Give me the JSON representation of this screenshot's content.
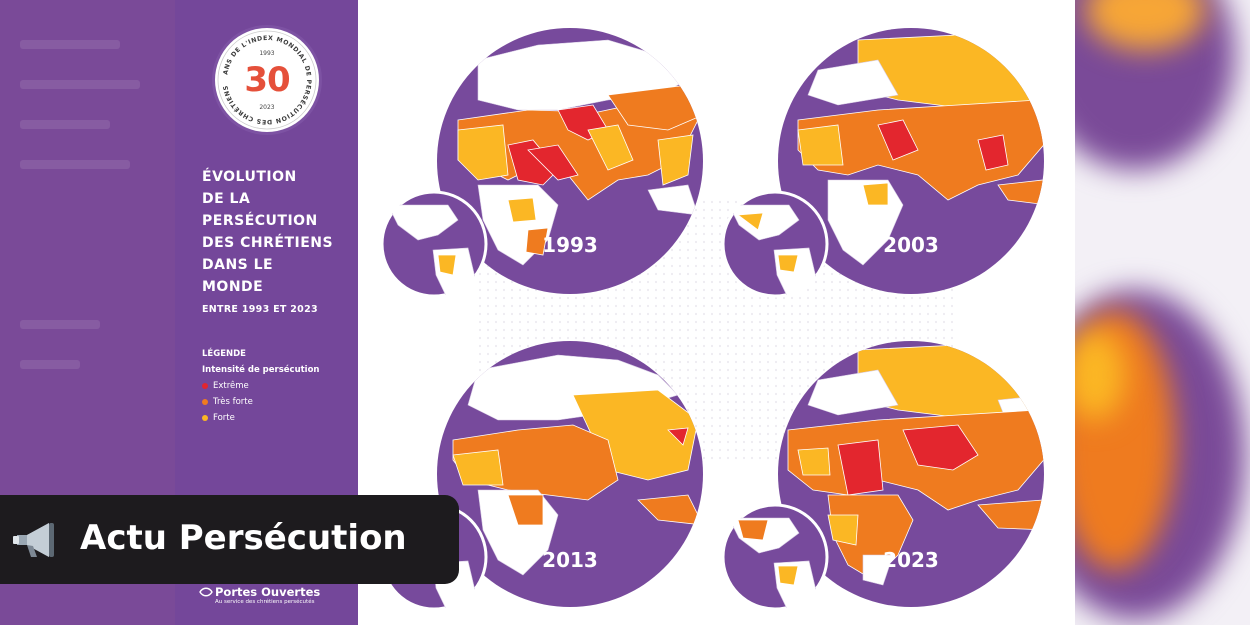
{
  "badge": {
    "ring_text": "ANS DE L'INDEX MONDIAL DE PERSÉCUTION DES CHRÉTIENS",
    "year_start": "1993",
    "number": "30",
    "year_end": "2023"
  },
  "title_lines": [
    "ÉVOLUTION",
    "DE LA",
    "PERSÉCUTION",
    "DES CHRÉTIENS",
    "DANS LE",
    "MONDE"
  ],
  "subtitle": "ENTRE 1993 ET 2023",
  "legend": {
    "title": "LÉGENDE",
    "subtitle": "Intensité de persécution",
    "items": [
      {
        "label": "Extrême",
        "color": "#e3262e"
      },
      {
        "label": "Très forte",
        "color": "#ef7b1f"
      },
      {
        "label": "Forte",
        "color": "#fbb724"
      }
    ]
  },
  "maps": [
    {
      "year": "1993"
    },
    {
      "year": "2003"
    },
    {
      "year": "2013"
    },
    {
      "year": "2023"
    }
  ],
  "colors": {
    "ocean": "#774a9c",
    "panel": "#74479a",
    "extreme": "#e3262e",
    "very_strong": "#ef7b1f",
    "strong": "#fbb724",
    "land": "#ffffff"
  },
  "banner": {
    "icon": "megaphone-icon",
    "text": "Actu Persécution"
  },
  "logo": {
    "name": "Portes Ouvertes",
    "tagline": "Au service des chrétiens persécutés"
  }
}
